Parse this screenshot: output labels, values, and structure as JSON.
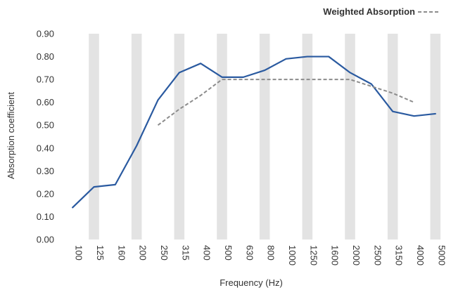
{
  "chart_data": {
    "type": "line",
    "xlabel": "Frequency (Hz)",
    "ylabel": "Absorption coefficient",
    "ylim": [
      0,
      0.9
    ],
    "categories": [
      "100",
      "125",
      "160",
      "200",
      "250",
      "315",
      "400",
      "500",
      "630",
      "800",
      "1000",
      "1250",
      "1600",
      "2000",
      "2500",
      "3150",
      "4000",
      "5000"
    ],
    "yticks": [
      "0.00",
      "0.10",
      "0.20",
      "0.30",
      "0.40",
      "0.50",
      "0.60",
      "0.70",
      "0.80",
      "0.90"
    ],
    "series": [
      {
        "values": [
          0.14,
          0.23,
          0.24,
          0.41,
          0.61,
          0.73,
          0.77,
          0.71,
          0.71,
          0.74,
          0.79,
          0.8,
          0.8,
          0.73,
          0.68,
          0.56,
          0.54,
          0.55
        ],
        "color": "#2a5aa0",
        "style": "solid"
      },
      {
        "name": "Weighted Absorption",
        "values": [
          null,
          null,
          null,
          null,
          0.5,
          0.57,
          0.63,
          0.7,
          0.7,
          0.7,
          0.7,
          0.7,
          0.7,
          0.7,
          0.67,
          0.64,
          0.6,
          null
        ],
        "color": "#8c8c8c",
        "style": "dashed"
      }
    ],
    "grid": "alternating vertical bands",
    "band_color": "#e3e3e3",
    "legend_position": "top-right"
  }
}
